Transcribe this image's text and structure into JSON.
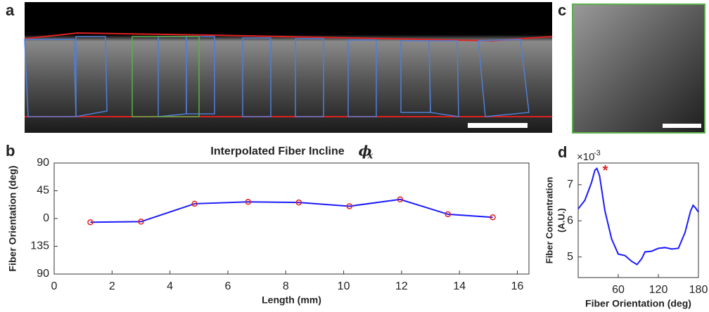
{
  "panel_labels": [
    "a",
    "b",
    "c",
    "d"
  ],
  "chart_data": [
    {
      "type": "line",
      "title": "Interpolated Fiber Incline",
      "title_symbol": "ϕ",
      "title_subscript": "x",
      "x_label": "Length (mm)",
      "y_label": "Fiber Orientation (deg)",
      "x": [
        1.25,
        3.0,
        4.85,
        6.7,
        8.45,
        10.2,
        11.95,
        13.6,
        15.15
      ],
      "series": [
        {
          "color": "#1a1aff",
          "marker_color": "#e0201e",
          "values": [
            -6,
            -5,
            24,
            27,
            26,
            20,
            31,
            7,
            2
          ]
        }
      ],
      "xlim": [
        0,
        16.4
      ],
      "ylim": [
        -90,
        90
      ],
      "xticks": [
        0,
        2,
        4,
        6,
        8,
        10,
        12,
        14,
        16
      ],
      "yticks": [
        90,
        45,
        0,
        {
          "value": -45,
          "label": "135"
        },
        {
          "value": -90,
          "label": "90"
        }
      ],
      "grid": false
    },
    {
      "type": "line",
      "x_label": "Fiber Orientation (deg)",
      "y_label": [
        "Fiber Concentration",
        "(A.U.)"
      ],
      "y_scale_label": "×10",
      "y_scale_exponent": "-3",
      "annotation": "*",
      "x": [
        0,
        10,
        20,
        25,
        28,
        32,
        40,
        50,
        60,
        70,
        80,
        88,
        95,
        100,
        110,
        120,
        130,
        140,
        150,
        160,
        168,
        172,
        176,
        180
      ],
      "series": [
        {
          "color": "#1a1aff",
          "values": [
            6.33,
            6.57,
            7.06,
            7.4,
            7.45,
            7.25,
            6.28,
            5.5,
            5.08,
            5.04,
            4.88,
            4.79,
            4.95,
            5.14,
            5.16,
            5.24,
            5.26,
            5.22,
            5.24,
            5.68,
            6.26,
            6.43,
            6.35,
            6.24
          ]
        }
      ],
      "xlim": [
        0,
        180
      ],
      "ylim": [
        4.43,
        7.6
      ],
      "xticks": [
        60,
        120,
        180
      ],
      "yticks": [
        5,
        6,
        7
      ],
      "grid": false
    }
  ]
}
